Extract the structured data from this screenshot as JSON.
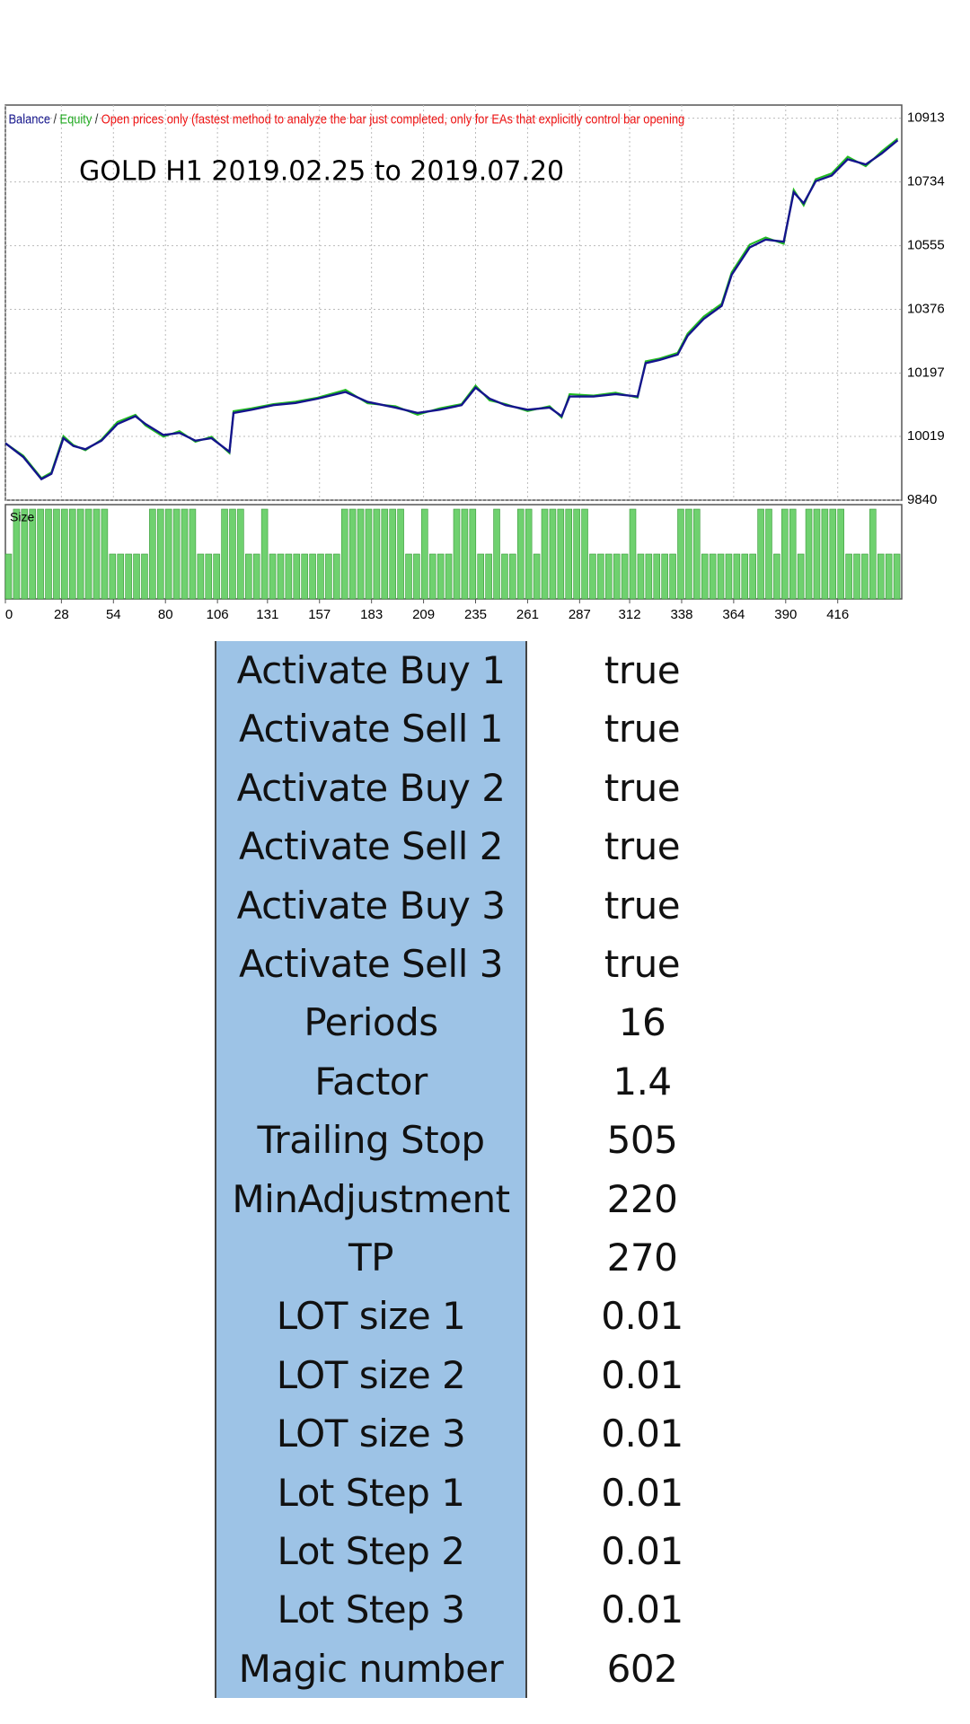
{
  "chart_data": [
    {
      "type": "line",
      "legend": {
        "separator": "/",
        "mode": "Open prices only (fastest method to analyze the bar just completed, only for EAs that explicitly control bar opening"
      },
      "annotation": "GOLD H1 2019.02.25  to  2019.07.20",
      "grid": true,
      "xlim": [
        0,
        448
      ],
      "xticks": [
        0,
        28,
        54,
        80,
        106,
        131,
        157,
        183,
        209,
        235,
        261,
        287,
        312,
        338,
        364,
        390,
        416
      ],
      "ylim": [
        9840,
        10950
      ],
      "yticks": [
        9840,
        10019,
        10197,
        10376,
        10555,
        10734,
        10913
      ],
      "x": [
        0,
        9,
        18,
        23,
        29,
        34,
        40,
        48,
        56,
        65,
        70,
        79,
        87,
        95,
        103,
        112,
        114,
        123,
        134,
        145,
        156,
        170,
        181,
        195,
        206,
        217,
        228,
        235,
        242,
        250,
        261,
        272,
        278,
        282,
        294,
        305,
        316,
        320,
        327,
        336,
        341,
        349,
        358,
        363,
        372,
        380,
        389,
        394,
        399,
        405,
        413,
        421,
        430,
        438,
        446
      ],
      "series": [
        {
          "name": "Equity",
          "color": "#22bb22",
          "values": [
            10000,
            9965,
            9902,
            9918,
            10020,
            9995,
            9980,
            10010,
            10060,
            10080,
            10050,
            10018,
            10034,
            10004,
            10018,
            9972,
            10090,
            10098,
            10110,
            10117,
            10128,
            10150,
            10112,
            10104,
            10080,
            10098,
            10110,
            10162,
            10120,
            10110,
            10090,
            10104,
            10072,
            10138,
            10134,
            10142,
            10128,
            10230,
            10238,
            10254,
            10308,
            10356,
            10392,
            10480,
            10558,
            10578,
            10560,
            10712,
            10668,
            10742,
            10758,
            10805,
            10778,
            10820,
            10856
          ]
        },
        {
          "name": "Balance",
          "color": "#14148c",
          "values": [
            10000,
            9961,
            9899,
            9914,
            10014,
            9992,
            9983,
            10007,
            10054,
            10076,
            10054,
            10023,
            10029,
            10007,
            10014,
            9976,
            10085,
            10094,
            10107,
            10113,
            10125,
            10144,
            10116,
            10100,
            10085,
            10094,
            10107,
            10156,
            10125,
            10107,
            10094,
            10100,
            10076,
            10131,
            10131,
            10138,
            10131,
            10225,
            10234,
            10249,
            10302,
            10349,
            10386,
            10473,
            10550,
            10572,
            10566,
            10705,
            10674,
            10736,
            10752,
            10798,
            10783,
            10814,
            10851
          ]
        }
      ]
    },
    {
      "type": "bar",
      "title": "Size",
      "color": "#6fd16f",
      "xlim": [
        0,
        448
      ],
      "ylim": [
        0,
        0.021
      ],
      "x": [
        0,
        4,
        8,
        12,
        16,
        20,
        24,
        28,
        32,
        36,
        40,
        44,
        48,
        52,
        56,
        60,
        64,
        68,
        72,
        76,
        80,
        84,
        88,
        92,
        96,
        100,
        104,
        108,
        112,
        116,
        120,
        124,
        128,
        132,
        136,
        140,
        144,
        148,
        152,
        156,
        160,
        164,
        168,
        172,
        176,
        180,
        184,
        188,
        192,
        196,
        200,
        204,
        208,
        212,
        216,
        220,
        224,
        228,
        232,
        236,
        240,
        244,
        248,
        252,
        256,
        260,
        264,
        268,
        272,
        276,
        280,
        284,
        288,
        292,
        296,
        300,
        304,
        308,
        312,
        316,
        320,
        324,
        328,
        332,
        336,
        340,
        344,
        348,
        352,
        356,
        360,
        364,
        368,
        372,
        376,
        380,
        384,
        388,
        392,
        396,
        400,
        404,
        408,
        412,
        416,
        420,
        424,
        428,
        432,
        436,
        440,
        444
      ],
      "values": [
        0.01,
        0.02,
        0.02,
        0.02,
        0.02,
        0.02,
        0.02,
        0.02,
        0.02,
        0.02,
        0.02,
        0.02,
        0.02,
        0.01,
        0.01,
        0.01,
        0.01,
        0.01,
        0.02,
        0.02,
        0.02,
        0.02,
        0.02,
        0.02,
        0.01,
        0.01,
        0.01,
        0.02,
        0.02,
        0.02,
        0.01,
        0.01,
        0.02,
        0.01,
        0.01,
        0.01,
        0.01,
        0.01,
        0.01,
        0.01,
        0.01,
        0.01,
        0.02,
        0.02,
        0.02,
        0.02,
        0.02,
        0.02,
        0.02,
        0.02,
        0.01,
        0.01,
        0.02,
        0.01,
        0.01,
        0.01,
        0.02,
        0.02,
        0.02,
        0.01,
        0.01,
        0.02,
        0.01,
        0.01,
        0.02,
        0.02,
        0.01,
        0.02,
        0.02,
        0.02,
        0.02,
        0.02,
        0.02,
        0.01,
        0.01,
        0.01,
        0.01,
        0.01,
        0.02,
        0.01,
        0.01,
        0.01,
        0.01,
        0.01,
        0.02,
        0.02,
        0.02,
        0.01,
        0.01,
        0.01,
        0.01,
        0.01,
        0.01,
        0.01,
        0.02,
        0.02,
        0.01,
        0.02,
        0.02,
        0.01,
        0.02,
        0.02,
        0.02,
        0.02,
        0.02,
        0.01,
        0.01,
        0.01,
        0.02,
        0.01,
        0.01,
        0.01
      ]
    }
  ],
  "table": {
    "rows": [
      [
        "Activate Buy 1",
        "true"
      ],
      [
        "Activate Sell 1",
        "true"
      ],
      [
        "Activate Buy 2",
        "true"
      ],
      [
        "Activate Sell 2",
        "true"
      ],
      [
        "Activate Buy 3",
        "true"
      ],
      [
        "Activate Sell 3",
        "true"
      ],
      [
        "Periods",
        "16"
      ],
      [
        "Factor",
        "1.4"
      ],
      [
        "Trailing Stop",
        "505"
      ],
      [
        "MinAdjustment",
        "220"
      ],
      [
        "TP",
        "270"
      ],
      [
        "LOT size 1",
        "0.01"
      ],
      [
        "LOT size 2",
        "0.01"
      ],
      [
        "LOT size 3",
        "0.01"
      ],
      [
        "Lot Step 1",
        "0.01"
      ],
      [
        "Lot Step 2",
        "0.01"
      ],
      [
        "Lot Step 3",
        "0.01"
      ],
      [
        "Magic number",
        "602"
      ]
    ]
  }
}
